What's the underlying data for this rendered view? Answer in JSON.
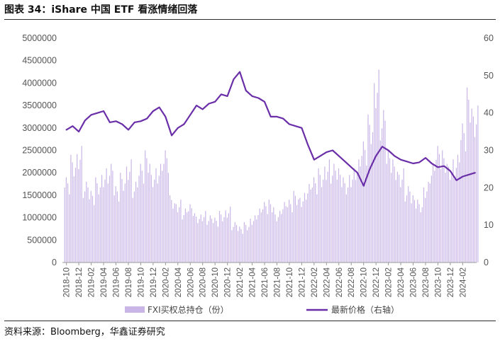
{
  "header": {
    "title": "图表 34：iShare 中国 ETF 看涨情绪回落"
  },
  "footer": {
    "source": "资料来源：Bloomberg，华鑫证券研究"
  },
  "colors": {
    "bars": "#c9b6e6",
    "line": "#6a2fa8",
    "axis": "#999999"
  },
  "chart_data": {
    "type": "bar+line",
    "title": "",
    "xlabel": "",
    "ylabel_left": "",
    "ylabel_right": "",
    "y_left": {
      "ylim": [
        0,
        5000000
      ],
      "ticks": [
        "0",
        "500000",
        "1000000",
        "1500000",
        "2000000",
        "2500000",
        "3000000",
        "3500000",
        "4000000",
        "4500000",
        "5000000"
      ]
    },
    "y_right": {
      "ylim": [
        0,
        60
      ],
      "ticks": [
        "0",
        "10",
        "20",
        "30",
        "40",
        "50",
        "60"
      ]
    },
    "x_tick_labels": [
      "2018-10",
      "2018-12",
      "2019-02",
      "2019-04",
      "2019-06",
      "2019-08",
      "2019-10",
      "2019-12",
      "2020-02",
      "2020-04",
      "2020-06",
      "2020-08",
      "2020-10",
      "2020-12",
      "2021-02",
      "2021-04",
      "2021-06",
      "2021-08",
      "2021-10",
      "2021-12",
      "2022-02",
      "2022-04",
      "2022-06",
      "2022-08",
      "2022-10",
      "2022-12",
      "2023-02",
      "2023-04",
      "2023-06",
      "2023-08",
      "2023-10",
      "2023-12",
      "2024-02"
    ],
    "grid": false,
    "legend_position": "bottom",
    "series": [
      {
        "name": "FXI买权总持仓（份）",
        "type": "bar",
        "axis": "left",
        "x": [
          "2018-10",
          "2018-11",
          "2018-12",
          "2019-01",
          "2019-02",
          "2019-03",
          "2019-04",
          "2019-05",
          "2019-06",
          "2019-07",
          "2019-08",
          "2019-09",
          "2019-10",
          "2019-11",
          "2019-12",
          "2020-01",
          "2020-02",
          "2020-03",
          "2020-04",
          "2020-05",
          "2020-06",
          "2020-07",
          "2020-08",
          "2020-09",
          "2020-10",
          "2020-11",
          "2020-12",
          "2021-01",
          "2021-02",
          "2021-03",
          "2021-04",
          "2021-05",
          "2021-06",
          "2021-07",
          "2021-08",
          "2021-09",
          "2021-10",
          "2021-11",
          "2021-12",
          "2022-01",
          "2022-02",
          "2022-03",
          "2022-04",
          "2022-05",
          "2022-06",
          "2022-07",
          "2022-08",
          "2022-09",
          "2022-10",
          "2022-11",
          "2022-12",
          "2023-01",
          "2023-02",
          "2023-03",
          "2023-04",
          "2023-05",
          "2023-06",
          "2023-07",
          "2023-08",
          "2023-09",
          "2023-10",
          "2023-11",
          "2023-12",
          "2024-01",
          "2024-02",
          "2024-03",
          "2024-04"
        ],
        "values": [
          1900000,
          2400000,
          2600000,
          1800000,
          1600000,
          1900000,
          2100000,
          2200000,
          1700000,
          2000000,
          2300000,
          1800000,
          2200000,
          2500000,
          2100000,
          2200000,
          2500000,
          1500000,
          1400000,
          1200000,
          1300000,
          1100000,
          1150000,
          1050000,
          1000000,
          1150000,
          1250000,
          900000,
          800000,
          900000,
          1050000,
          1200000,
          1350000,
          1400000,
          1150000,
          1350000,
          1400000,
          1600000,
          1550000,
          1750000,
          1900000,
          2100000,
          2300000,
          2200000,
          2100000,
          1900000,
          2100000,
          2300000,
          2700000,
          3300000,
          4300000,
          3400000,
          2500000,
          2300000,
          2100000,
          1700000,
          1500000,
          1400000,
          1800000,
          2200000,
          2600000,
          2500000,
          2300000,
          2400000,
          3100000,
          3900000,
          3500000
        ]
      },
      {
        "name": "最新价格（右轴）",
        "type": "line",
        "axis": "right",
        "x": [
          "2018-10",
          "2018-11",
          "2018-12",
          "2019-01",
          "2019-02",
          "2019-03",
          "2019-04",
          "2019-05",
          "2019-06",
          "2019-07",
          "2019-08",
          "2019-09",
          "2019-10",
          "2019-11",
          "2019-12",
          "2020-01",
          "2020-02",
          "2020-03",
          "2020-04",
          "2020-05",
          "2020-06",
          "2020-07",
          "2020-08",
          "2020-09",
          "2020-10",
          "2020-11",
          "2020-12",
          "2021-01",
          "2021-02",
          "2021-03",
          "2021-04",
          "2021-05",
          "2021-06",
          "2021-07",
          "2021-08",
          "2021-09",
          "2021-10",
          "2021-11",
          "2021-12",
          "2022-01",
          "2022-02",
          "2022-03",
          "2022-04",
          "2022-05",
          "2022-06",
          "2022-07",
          "2022-08",
          "2022-09",
          "2022-10",
          "2022-11",
          "2022-12",
          "2023-01",
          "2023-02",
          "2023-03",
          "2023-04",
          "2023-05",
          "2023-06",
          "2023-07",
          "2023-08",
          "2023-09",
          "2023-10",
          "2023-11",
          "2023-12",
          "2024-01",
          "2024-02",
          "2024-03",
          "2024-04"
        ],
        "values": [
          35.5,
          36.5,
          35.0,
          38.0,
          39.5,
          40.0,
          40.5,
          37.5,
          37.8,
          37.0,
          35.5,
          37.5,
          37.8,
          38.5,
          40.5,
          41.5,
          39.0,
          34.0,
          36.0,
          37.0,
          39.5,
          42.0,
          41.0,
          42.5,
          43.0,
          45.0,
          44.5,
          49.0,
          51.0,
          46.0,
          44.5,
          44.0,
          43.0,
          39.0,
          39.0,
          38.5,
          37.0,
          36.5,
          36.0,
          31.5,
          27.5,
          28.5,
          29.5,
          30.0,
          28.5,
          27.0,
          25.5,
          24.0,
          20.5,
          25.0,
          28.5,
          31.0,
          30.0,
          28.5,
          27.5,
          27.0,
          26.5,
          26.8,
          28.0,
          26.5,
          25.5,
          25.8,
          24.5,
          22.0,
          23.0,
          23.5,
          24.0
        ]
      }
    ]
  }
}
